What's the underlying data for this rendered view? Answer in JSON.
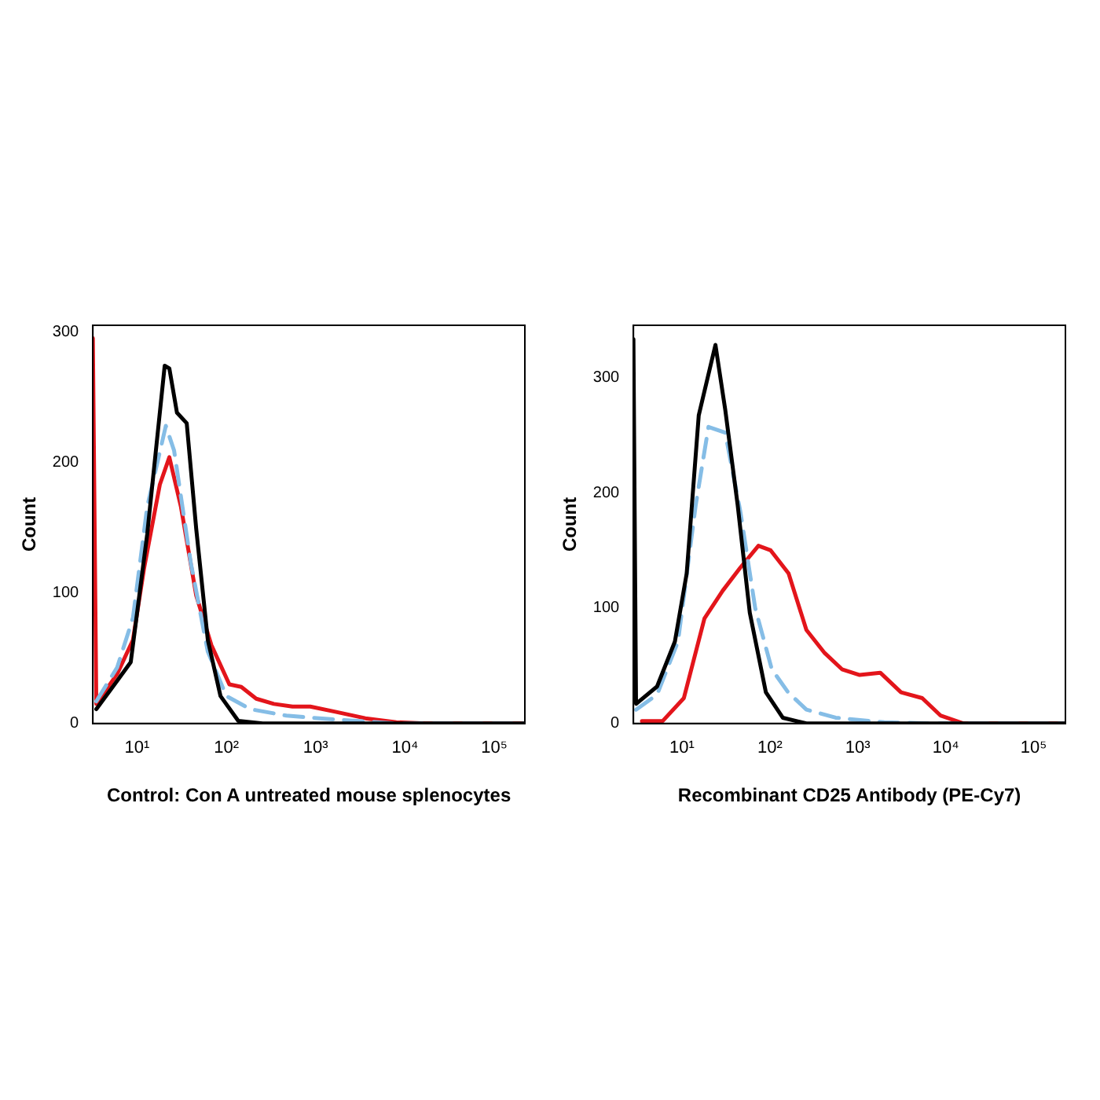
{
  "chart_data": [
    {
      "type": "line",
      "xlabel": "Control: Con A untreated mouse splenocytes",
      "ylabel": "Count",
      "log": "x",
      "grid": false,
      "legend": false,
      "marker": "none",
      "xlim": [
        3.2,
        220000
      ],
      "xticks": [
        {
          "value": 10,
          "label": "10¹"
        },
        {
          "value": 100,
          "label": "10²"
        },
        {
          "value": 1000,
          "label": "10³"
        },
        {
          "value": 10000,
          "label": "10⁴"
        },
        {
          "value": 100000,
          "label": "10⁵"
        }
      ],
      "ylim": [
        0,
        305
      ],
      "yticks": [
        0,
        100,
        200,
        300
      ],
      "series": [
        {
          "color": "#000000",
          "line_style": "solid",
          "x": [
            3.5,
            5.6,
            8.5,
            13,
            20.4,
            23,
            28,
            36,
            46,
            62,
            86,
            136,
            255,
            220000
          ],
          "values": [
            11,
            30,
            47,
            145,
            274,
            272,
            238,
            230,
            149,
            64,
            21,
            2,
            0,
            0
          ]
        },
        {
          "color": "#85bde6",
          "line_style": "dashed",
          "x": [
            3.5,
            6,
            9,
            13,
            21,
            26,
            40,
            62,
            100,
            185,
            470,
            1660,
            8000,
            220000
          ],
          "values": [
            17,
            43,
            81,
            166,
            228,
            209,
            123,
            55,
            21,
            11,
            6,
            3,
            0,
            0
          ]
        },
        {
          "color": "#e3151b",
          "line_style": "solid",
          "x": [
            3.2,
            3.5,
            6,
            9,
            12,
            18,
            23,
            31,
            46,
            68,
            108,
            147,
            216,
            340,
            550,
            870,
            1660,
            3600,
            8000,
            17000,
            220000
          ],
          "values": [
            295,
            15,
            38,
            64,
            119,
            183,
            204,
            166,
            98,
            60,
            30,
            28,
            19,
            15,
            13,
            13,
            9,
            4,
            1,
            0,
            0
          ]
        }
      ]
    },
    {
      "type": "line",
      "xlabel": "Recombinant CD25 Antibody (PE-Cy7)",
      "ylabel": "Count",
      "log": "x",
      "grid": false,
      "legend": false,
      "marker": "none",
      "xlim": [
        2.8,
        230000
      ],
      "xticks": [
        {
          "value": 10,
          "label": "10¹"
        },
        {
          "value": 100,
          "label": "10²"
        },
        {
          "value": 1000,
          "label": "10³"
        },
        {
          "value": 10000,
          "label": "10⁴"
        },
        {
          "value": 100000,
          "label": "10⁵"
        }
      ],
      "ylim": [
        0,
        345
      ],
      "yticks": [
        0,
        100,
        200,
        300
      ],
      "series": [
        {
          "color": "#000000",
          "line_style": "solid",
          "x": [
            2.8,
            3.0,
            5.2,
            8.3,
            11.3,
            15.5,
            24,
            31,
            43,
            59,
            90,
            140,
            260,
            230000
          ],
          "values": [
            333,
            17,
            32,
            71,
            130,
            267,
            328,
            272,
            189,
            96,
            27,
            5,
            0,
            0
          ]
        },
        {
          "color": "#85bde6",
          "line_style": "dashed",
          "x": [
            3.0,
            5.2,
            9,
            14.3,
            20,
            31,
            46,
            68,
            105,
            161,
            260,
            560,
            2000,
            7000,
            230000
          ],
          "values": [
            12,
            25,
            71,
            189,
            257,
            252,
            184,
            100,
            47,
            27,
            12,
            5,
            1,
            0,
            0
          ]
        },
        {
          "color": "#e3151b",
          "line_style": "solid",
          "x": [
            3.5,
            6,
            10.5,
            18,
            29,
            46,
            74,
            102,
            163,
            260,
            420,
            660,
            1050,
            1800,
            3100,
            5400,
            8700,
            16000,
            230000
          ],
          "values": [
            2,
            2,
            22,
            91,
            115,
            135,
            154,
            150,
            130,
            81,
            61,
            47,
            42,
            44,
            27,
            22,
            7,
            0,
            0
          ]
        }
      ]
    }
  ]
}
